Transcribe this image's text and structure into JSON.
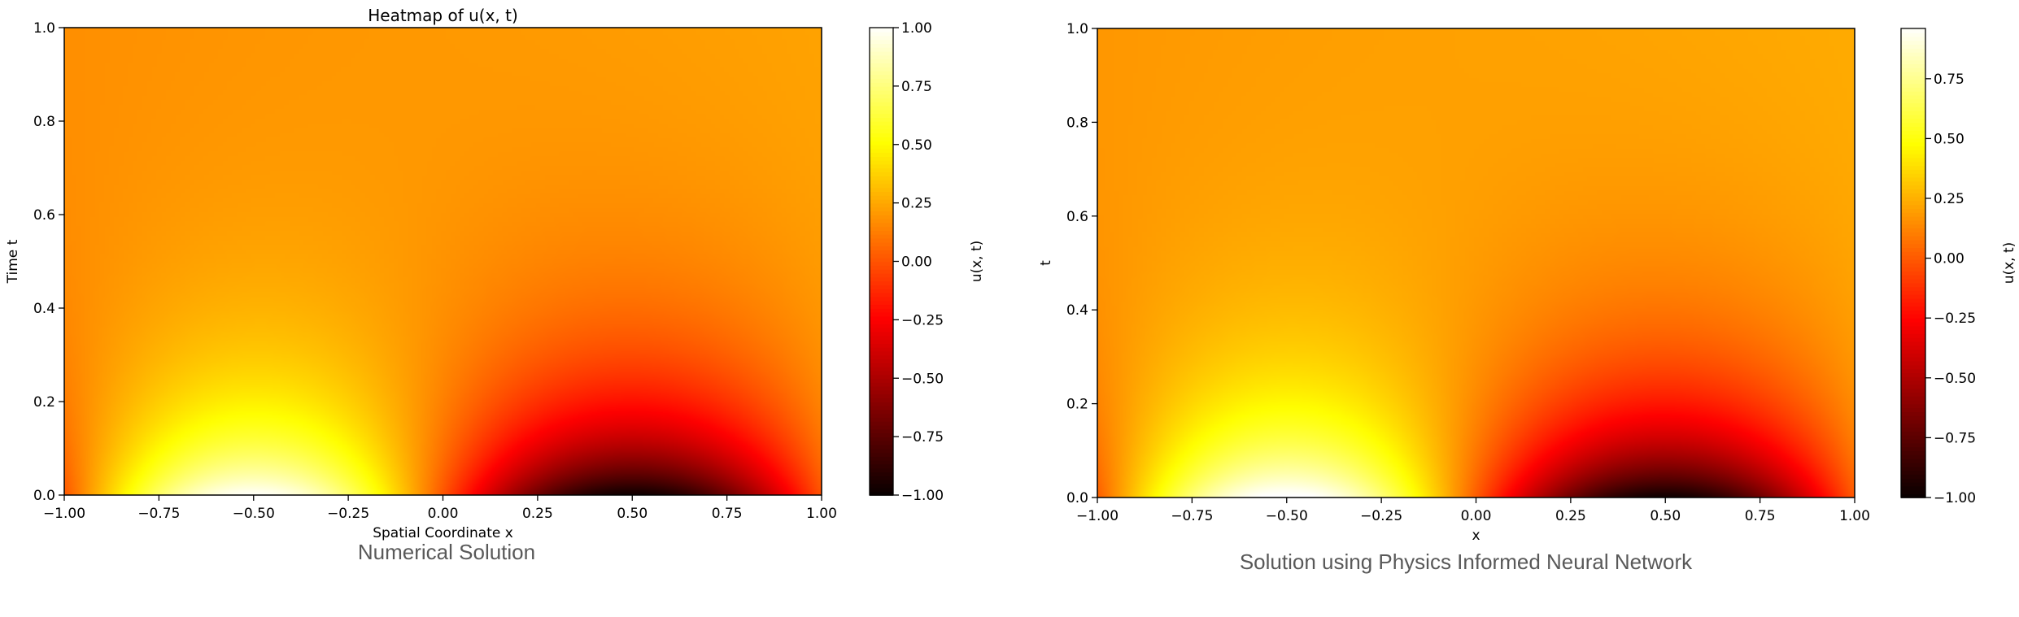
{
  "chart_data": [
    {
      "type": "heatmap",
      "title": "Heatmap of u(x, t)",
      "xlabel": "Spatial Coordinate x",
      "ylabel": "Time t",
      "colorbar_label": "u(x, t)",
      "colormap": "hot",
      "xlim": [
        -1.0,
        1.0
      ],
      "ylim": [
        0.0,
        1.0
      ],
      "clim": [
        -1.0,
        1.0
      ],
      "x_ticks": [
        "−1.00",
        "−0.75",
        "−0.50",
        "−0.25",
        "0.00",
        "0.25",
        "0.50",
        "0.75",
        "1.00"
      ],
      "y_ticks": [
        "0.0",
        "0.2",
        "0.4",
        "0.6",
        "0.8",
        "1.0"
      ],
      "colorbar_ticks": [
        "−1.00",
        "−0.75",
        "−0.50",
        "−0.25",
        "0.00",
        "0.25",
        "0.50",
        "0.75",
        "1.00"
      ],
      "colorbar_tick_values": [
        -1.0,
        -0.75,
        -0.5,
        -0.25,
        0.0,
        0.25,
        0.5,
        0.75,
        1.0
      ],
      "caption": "Numerical Solution"
    },
    {
      "type": "heatmap",
      "title": "",
      "xlabel": "x",
      "ylabel": "t",
      "colorbar_label": "u(x, t)",
      "colormap": "hot",
      "xlim": [
        -1.0,
        1.0
      ],
      "ylim": [
        0.0,
        1.0
      ],
      "clim": [
        -1.0,
        0.96
      ],
      "x_ticks": [
        "−1.00",
        "−0.75",
        "−0.50",
        "−0.25",
        "0.00",
        "0.25",
        "0.50",
        "0.75",
        "1.00"
      ],
      "y_ticks": [
        "0.0",
        "0.2",
        "0.4",
        "0.6",
        "0.8",
        "1.0"
      ],
      "colorbar_ticks": [
        "−1.00",
        "−0.75",
        "−0.50",
        "−0.25",
        "0.00",
        "0.25",
        "0.50",
        "0.75"
      ],
      "colorbar_tick_values": [
        -1.0,
        -0.75,
        -0.5,
        -0.25,
        0.0,
        0.25,
        0.5,
        0.75
      ],
      "caption": "Solution using Physics Informed Neural Network"
    }
  ]
}
